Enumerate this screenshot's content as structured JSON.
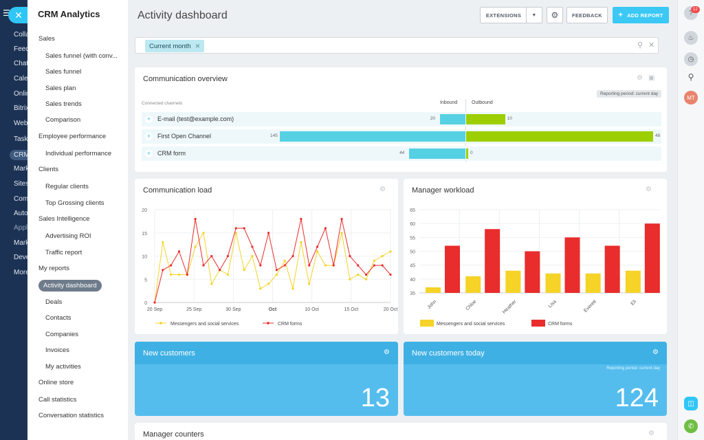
{
  "leftbar": {
    "items": [
      {
        "label": "Colla"
      },
      {
        "label": "Feed"
      },
      {
        "label": "Chat"
      },
      {
        "label": "Calen"
      },
      {
        "label": "Onlin"
      },
      {
        "label": "Bitrix"
      },
      {
        "label": "Web"
      },
      {
        "label": "Tasks"
      },
      {
        "label": "CRM"
      },
      {
        "label": "Mark"
      },
      {
        "label": "Sites"
      },
      {
        "label": "Comm"
      },
      {
        "label": "Auto"
      },
      {
        "label": "Appl"
      },
      {
        "label": "Mark"
      },
      {
        "label": "Deve"
      },
      {
        "label": "More"
      }
    ]
  },
  "sidebar": {
    "title": "CRM Analytics",
    "items": [
      {
        "label": "Sales",
        "level": 1
      },
      {
        "label": "Sales funnel (with conv...",
        "level": 2
      },
      {
        "label": "Sales funnel",
        "level": 2
      },
      {
        "label": "Sales plan",
        "level": 2
      },
      {
        "label": "Sales trends",
        "level": 2
      },
      {
        "label": "Comparison",
        "level": 2
      },
      {
        "label": "Employee performance",
        "level": 1
      },
      {
        "label": "Individual performance",
        "level": 2
      },
      {
        "label": "Clients",
        "level": 1
      },
      {
        "label": "Regular clients",
        "level": 2
      },
      {
        "label": "Top Grossing clients",
        "level": 2
      },
      {
        "label": "Sales Intelligence",
        "level": 1
      },
      {
        "label": "Advertising ROI",
        "level": 2
      },
      {
        "label": "Traffic report",
        "level": 2
      },
      {
        "label": "My reports",
        "level": 1
      },
      {
        "label": "Activity dashboard",
        "level": 2
      },
      {
        "label": "Deals",
        "level": 2
      },
      {
        "label": "Contacts",
        "level": 2
      },
      {
        "label": "Companies",
        "level": 2
      },
      {
        "label": "Invoices",
        "level": 2
      },
      {
        "label": "My activities",
        "level": 2
      },
      {
        "label": "Online store",
        "level": 1
      },
      {
        "label": "Call statistics",
        "level": 1
      },
      {
        "label": "Conversation statistics",
        "level": 1
      }
    ],
    "active": "Activity dashboard"
  },
  "header": {
    "title": "Activity dashboard",
    "extensions": "EXTENSIONS",
    "feedback": "FEEDBACK",
    "add_report": "ADD REPORT"
  },
  "filter": {
    "chip": "Current month"
  },
  "rightbar": {
    "badge": "12",
    "avatar": "MT"
  },
  "overview": {
    "title": "Communication overview",
    "period": "Reporting period: current day",
    "channels_label": "Connected channels",
    "inbound_label": "Inbound",
    "outbound_label": "Outbound",
    "rows": [
      {
        "label": "E-mail (test@example.com)",
        "inbound": 20,
        "outbound": 10,
        "inbound_label": "20",
        "outbound_label": "10"
      },
      {
        "label": "First Open Channel",
        "inbound": 145,
        "outbound": 48,
        "inbound_label": "145",
        "outbound_label": "48"
      },
      {
        "label": "CRM form",
        "inbound": 44,
        "outbound": 0,
        "inbound_label": "44",
        "outbound_label": "0"
      }
    ]
  },
  "load_title": "Communication load",
  "workload_title": "Manager workload",
  "chart_data": [
    {
      "type": "line",
      "title": "Communication load",
      "ylim": [
        0,
        20
      ],
      "yticks": [
        0,
        5,
        10,
        15,
        20
      ],
      "xticks": [
        "20 Sep",
        "25 Sep",
        "30 Sep",
        "Oct",
        "10 Oct",
        "15 Oct",
        "20 Oct"
      ],
      "legend": "bottom",
      "series": [
        {
          "name": "Messengers and social services",
          "color": "#f5d327",
          "values": [
            0,
            13,
            6,
            6,
            6,
            12,
            15,
            4,
            7,
            6,
            15,
            7,
            10,
            3,
            4,
            6,
            9,
            3,
            13,
            4,
            11,
            8,
            8,
            15,
            5,
            6,
            5,
            9,
            10,
            11
          ]
        },
        {
          "name": "CRM forms",
          "color": "#e92c2c",
          "values": [
            0,
            7,
            8,
            11,
            6,
            18,
            8,
            10,
            7,
            10,
            16,
            16,
            12,
            8,
            15,
            7,
            8,
            10,
            18,
            8,
            12,
            16,
            8,
            18,
            10,
            8,
            6,
            8,
            8,
            6
          ]
        }
      ]
    },
    {
      "type": "bar",
      "title": "Manager workload",
      "ylim": [
        35,
        65
      ],
      "yticks": [
        35,
        40,
        45,
        50,
        55,
        60,
        65
      ],
      "categories": [
        "John",
        "Chloe",
        "Heather",
        "Lisa",
        "Everett",
        "Eli"
      ],
      "legend": "bottom",
      "series": [
        {
          "name": "Messengers and social services",
          "color": "#f5d327",
          "values": [
            37,
            41,
            43,
            42,
            42,
            43
          ]
        },
        {
          "name": "CRM forms",
          "color": "#e92c2c",
          "values": [
            52,
            58,
            50,
            55,
            52,
            60
          ]
        }
      ]
    }
  ],
  "new_customers": {
    "title": "New customers",
    "value": "13"
  },
  "new_customers_today": {
    "title": "New customers today",
    "period": "Reporting period: current day",
    "value": "124"
  },
  "manager_counters": {
    "title": "Manager counters"
  }
}
